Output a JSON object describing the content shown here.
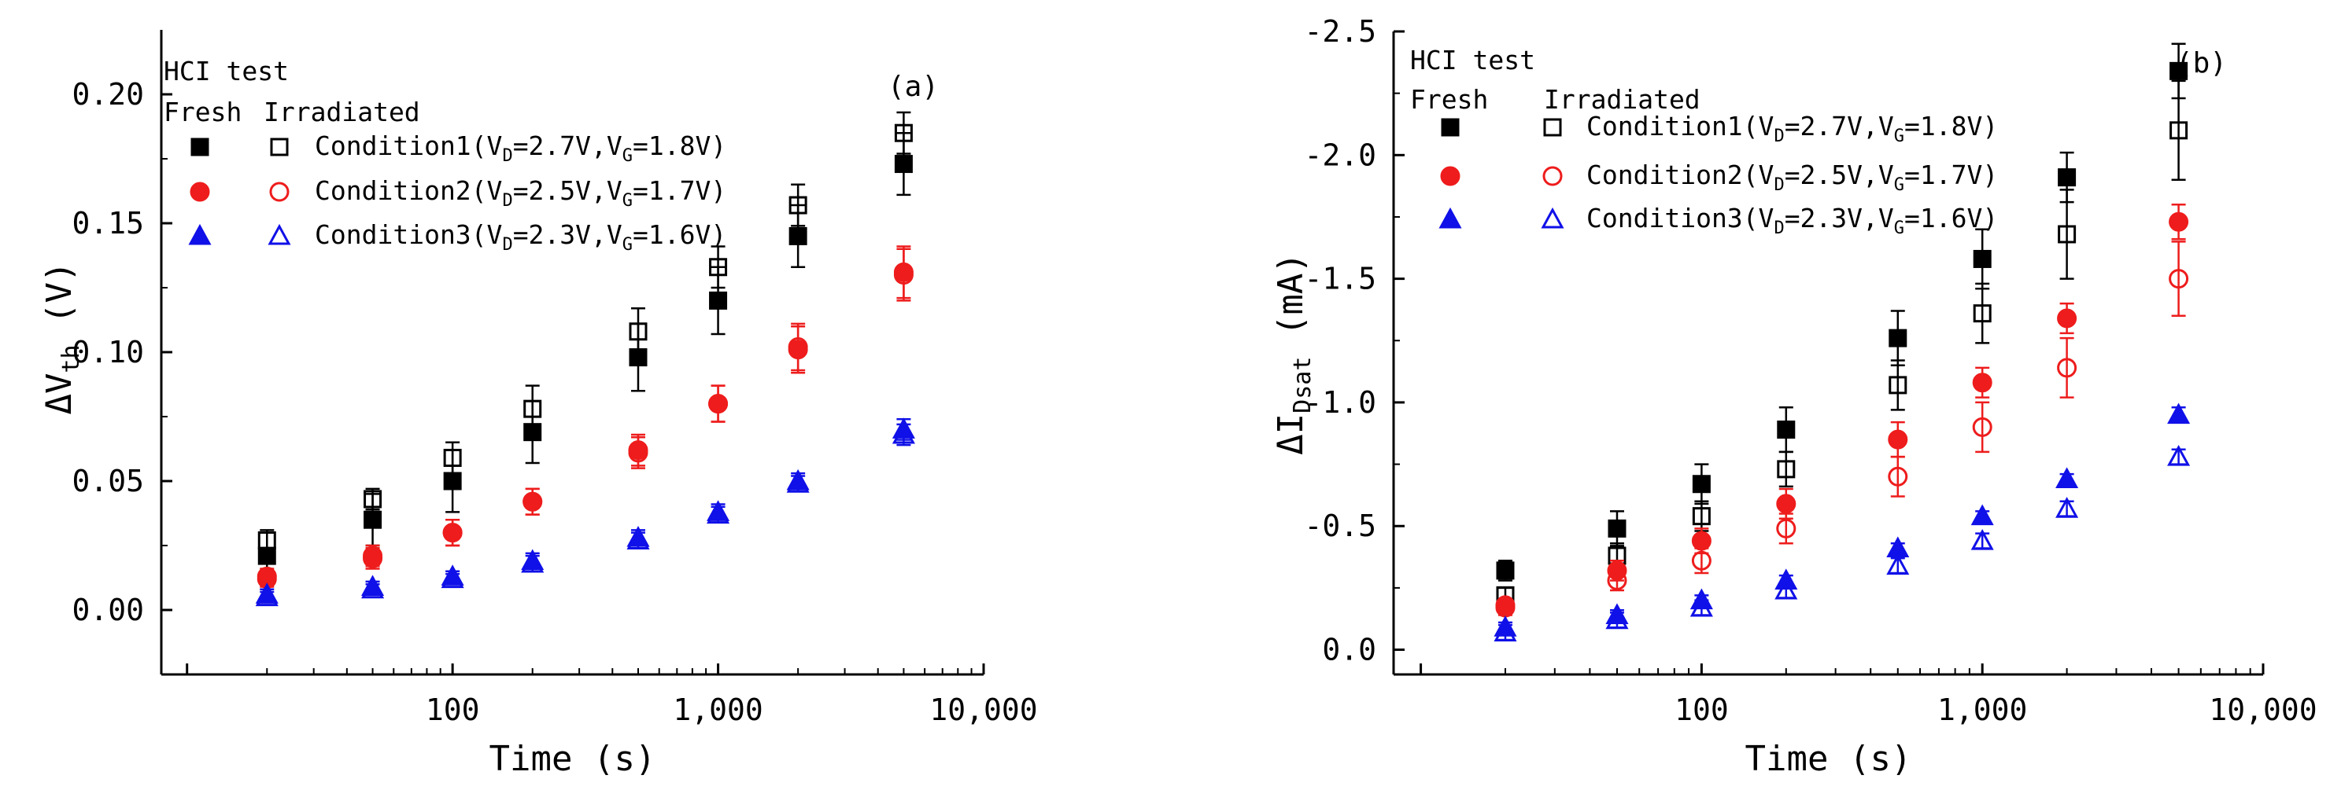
{
  "chart_data": [
    {
      "type": "scatter",
      "panel_label": "(a)",
      "xlabel": "Time (s)",
      "ylabel_prefix": "ΔV",
      "ylabel_sub": "th",
      "ylabel_suffix": " (V)",
      "xscale": "log",
      "xlim": [
        8,
        10000
      ],
      "ylim": [
        -0.025,
        0.225
      ],
      "x_ticks": [
        100,
        1000,
        10000
      ],
      "x_tick_labels": [
        "100",
        "1,000",
        "10,000"
      ],
      "y_ticks": [
        0.0,
        0.05,
        0.1,
        0.15,
        0.2
      ],
      "y_tick_labels": [
        "0.00",
        "0.05",
        "0.10",
        "0.15",
        "0.20"
      ],
      "legend": {
        "title": "HCI test",
        "header_fresh": "Fresh",
        "header_irradiated": "Irradiated",
        "entries": [
          {
            "label": "Condition1",
            "vd_label": "D",
            "vd": "=2.7V",
            "vg_label": "G",
            "vg": "=1.8V"
          },
          {
            "label": "Condition2",
            "vd_label": "D",
            "vd": "=2.5V",
            "vg_label": "G",
            "vg": "=1.7V"
          },
          {
            "label": "Condition3",
            "vd_label": "D",
            "vd": "=2.3V",
            "vg_label": "G",
            "vg": "=1.6V"
          }
        ]
      },
      "x": [
        20,
        50,
        100,
        200,
        500,
        1000,
        2000,
        5000
      ],
      "series": [
        {
          "name": "Condition1 Fresh",
          "marker": "square",
          "filled": true,
          "color": "#000000",
          "values": [
            0.021,
            0.035,
            0.05,
            0.069,
            0.098,
            0.12,
            0.145,
            0.173
          ],
          "errors": [
            0.01,
            0.01,
            0.012,
            0.012,
            0.013,
            0.013,
            0.012,
            0.012
          ]
        },
        {
          "name": "Condition1 Irradiated",
          "marker": "square",
          "filled": false,
          "color": "#000000",
          "values": [
            0.027,
            0.043,
            0.059,
            0.078,
            0.108,
            0.133,
            0.157,
            0.185
          ],
          "errors": [
            0.003,
            0.004,
            0.006,
            0.009,
            0.009,
            0.008,
            0.008,
            0.008
          ]
        },
        {
          "name": "Condition2 Fresh",
          "marker": "circle",
          "filled": true,
          "color": "#ee1c1c",
          "values": [
            0.012,
            0.02,
            0.03,
            0.042,
            0.062,
            0.08,
            0.101,
            0.131
          ],
          "errors": [
            0.003,
            0.004,
            0.005,
            0.005,
            0.006,
            0.007,
            0.009,
            0.01
          ]
        },
        {
          "name": "Condition2 Irradiated",
          "marker": "circle",
          "filled": false,
          "color": "#ee1c1c",
          "values": [
            0.013,
            0.021,
            0.03,
            0.042,
            0.061,
            0.08,
            0.102,
            0.13
          ],
          "errors": [
            0.003,
            0.004,
            0.005,
            0.005,
            0.006,
            0.007,
            0.009,
            0.01
          ]
        },
        {
          "name": "Condition3 Fresh",
          "marker": "triangle",
          "filled": true,
          "color": "#1010e8",
          "values": [
            0.006,
            0.009,
            0.013,
            0.019,
            0.028,
            0.038,
            0.05,
            0.07
          ],
          "errors": [
            0.002,
            0.002,
            0.002,
            0.003,
            0.003,
            0.003,
            0.003,
            0.004
          ]
        },
        {
          "name": "Condition3 Irradiated",
          "marker": "triangle",
          "filled": false,
          "color": "#1010e8",
          "values": [
            0.005,
            0.008,
            0.012,
            0.018,
            0.027,
            0.037,
            0.049,
            0.068
          ],
          "errors": [
            0.002,
            0.002,
            0.002,
            0.003,
            0.003,
            0.003,
            0.003,
            0.004
          ]
        }
      ]
    },
    {
      "type": "scatter",
      "panel_label": "(b)",
      "xlabel": "Time (s)",
      "ylabel_prefix": "ΔI",
      "ylabel_sub": "Dsat",
      "ylabel_suffix": " (mA)",
      "xscale": "log",
      "xlim": [
        8,
        10000
      ],
      "ylim": [
        0.1,
        -2.5
      ],
      "y_inverted": true,
      "x_ticks": [
        100,
        1000,
        10000
      ],
      "x_tick_labels": [
        "100",
        "1,000",
        "10,000"
      ],
      "y_ticks": [
        0.0,
        -0.5,
        -1.0,
        -1.5,
        -2.0,
        -2.5
      ],
      "y_tick_labels": [
        "0.0",
        "-0.5",
        "-1.0",
        "-1.5",
        "-2.0",
        "-2.5"
      ],
      "legend": {
        "title": "HCI test",
        "header_fresh": "Fresh",
        "header_irradiated": "Irradiated",
        "entries": [
          {
            "label": "Condition1",
            "vd_label": "D",
            "vd": "=2.7V",
            "vg_label": "G",
            "vg": "=1.8V"
          },
          {
            "label": "Condition2",
            "vd_label": "D",
            "vd": "=2.5V",
            "vg_label": "G",
            "vg": "=1.7V"
          },
          {
            "label": "Condition3",
            "vd_label": "D",
            "vd": "=2.3V",
            "vg_label": "G",
            "vg": "=1.6V"
          }
        ]
      },
      "x": [
        20,
        50,
        100,
        200,
        500,
        1000,
        2000,
        5000
      ],
      "series": [
        {
          "name": "Condition1 Fresh",
          "marker": "square",
          "filled": true,
          "color": "#000000",
          "values": [
            -0.32,
            -0.49,
            -0.67,
            -0.89,
            -1.26,
            -1.58,
            -1.91,
            -2.34
          ],
          "errors": [
            0.04,
            0.07,
            0.08,
            0.09,
            0.11,
            0.12,
            0.1,
            0.11
          ]
        },
        {
          "name": "Condition1 Irradiated",
          "marker": "square",
          "filled": false,
          "color": "#000000",
          "values": [
            -0.22,
            -0.38,
            -0.54,
            -0.73,
            -1.07,
            -1.36,
            -1.68,
            -2.1
          ],
          "errors": [
            0.03,
            0.05,
            0.06,
            0.07,
            0.1,
            0.12,
            0.18,
            0.2
          ]
        },
        {
          "name": "Condition2 Fresh",
          "marker": "circle",
          "filled": true,
          "color": "#ee1c1c",
          "values": [
            -0.18,
            -0.32,
            -0.44,
            -0.59,
            -0.85,
            -1.08,
            -1.34,
            -1.73
          ],
          "errors": [
            0.02,
            0.04,
            0.05,
            0.06,
            0.07,
            0.06,
            0.06,
            0.07
          ]
        },
        {
          "name": "Condition2 Irradiated",
          "marker": "circle",
          "filled": false,
          "color": "#ee1c1c",
          "values": [
            -0.17,
            -0.28,
            -0.36,
            -0.49,
            -0.7,
            -0.9,
            -1.14,
            -1.5
          ],
          "errors": [
            0.03,
            0.04,
            0.05,
            0.06,
            0.08,
            0.1,
            0.12,
            0.15
          ]
        },
        {
          "name": "Condition3 Fresh",
          "marker": "triangle",
          "filled": true,
          "color": "#1010e8",
          "values": [
            -0.09,
            -0.14,
            -0.2,
            -0.28,
            -0.41,
            -0.54,
            -0.69,
            -0.95
          ],
          "errors": [
            0.02,
            0.02,
            0.02,
            0.02,
            0.02,
            0.02,
            0.02,
            0.03
          ]
        },
        {
          "name": "Condition3 Irradiated",
          "marker": "triangle",
          "filled": false,
          "color": "#1010e8",
          "values": [
            -0.07,
            -0.12,
            -0.17,
            -0.24,
            -0.34,
            -0.44,
            -0.57,
            -0.78
          ],
          "errors": [
            0.03,
            0.03,
            0.03,
            0.03,
            0.03,
            0.03,
            0.03,
            0.03
          ]
        }
      ]
    }
  ]
}
